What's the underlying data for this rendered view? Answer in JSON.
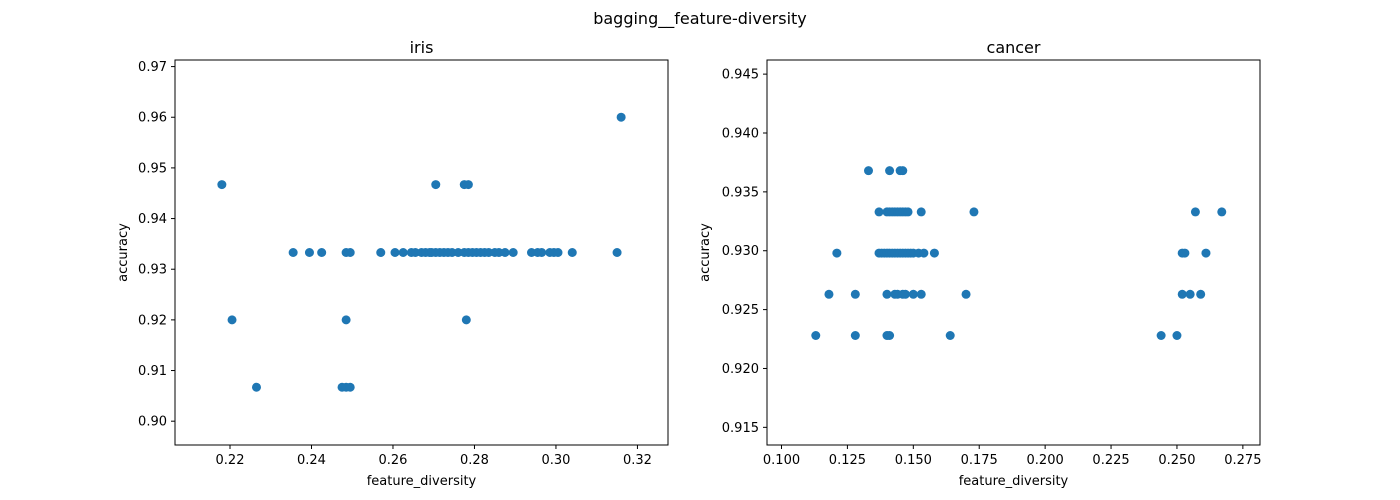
{
  "figure": {
    "suptitle": "bagging__feature-diversity",
    "point_color": "#1f77b4"
  },
  "chart_data": [
    {
      "type": "scatter",
      "title": "iris",
      "xlabel": "feature_diversity",
      "ylabel": "accuracy",
      "xlim": [
        0.2065,
        0.3275
      ],
      "ylim": [
        0.8953,
        0.9713
      ],
      "xticks": [
        0.22,
        0.24,
        0.26,
        0.28,
        0.3,
        0.32
      ],
      "xtick_labels": [
        "0.22",
        "0.24",
        "0.26",
        "0.28",
        "0.30",
        "0.32"
      ],
      "yticks": [
        0.9,
        0.91,
        0.92,
        0.93,
        0.94,
        0.95,
        0.96,
        0.97
      ],
      "ytick_labels": [
        "0.90",
        "0.91",
        "0.92",
        "0.93",
        "0.94",
        "0.95",
        "0.96",
        "0.97"
      ],
      "grid": false,
      "points": [
        {
          "x": 0.218,
          "y": 0.9467
        },
        {
          "x": 0.2705,
          "y": 0.9467
        },
        {
          "x": 0.2775,
          "y": 0.9467
        },
        {
          "x": 0.2785,
          "y": 0.9467
        },
        {
          "x": 0.316,
          "y": 0.96
        },
        {
          "x": 0.2205,
          "y": 0.92
        },
        {
          "x": 0.2485,
          "y": 0.92
        },
        {
          "x": 0.278,
          "y": 0.92
        },
        {
          "x": 0.2265,
          "y": 0.9067
        },
        {
          "x": 0.2475,
          "y": 0.9067
        },
        {
          "x": 0.2485,
          "y": 0.9067
        },
        {
          "x": 0.2495,
          "y": 0.9067
        },
        {
          "x": 0.2355,
          "y": 0.9333
        },
        {
          "x": 0.2395,
          "y": 0.9333
        },
        {
          "x": 0.2425,
          "y": 0.9333
        },
        {
          "x": 0.2485,
          "y": 0.9333
        },
        {
          "x": 0.2495,
          "y": 0.9333
        },
        {
          "x": 0.257,
          "y": 0.9333
        },
        {
          "x": 0.2605,
          "y": 0.9333
        },
        {
          "x": 0.2625,
          "y": 0.9333
        },
        {
          "x": 0.2645,
          "y": 0.9333
        },
        {
          "x": 0.2655,
          "y": 0.9333
        },
        {
          "x": 0.267,
          "y": 0.9333
        },
        {
          "x": 0.268,
          "y": 0.9333
        },
        {
          "x": 0.269,
          "y": 0.9333
        },
        {
          "x": 0.2695,
          "y": 0.9333
        },
        {
          "x": 0.2705,
          "y": 0.9333
        },
        {
          "x": 0.2715,
          "y": 0.9333
        },
        {
          "x": 0.2725,
          "y": 0.9333
        },
        {
          "x": 0.2735,
          "y": 0.9333
        },
        {
          "x": 0.2745,
          "y": 0.9333
        },
        {
          "x": 0.276,
          "y": 0.9333
        },
        {
          "x": 0.2775,
          "y": 0.9333
        },
        {
          "x": 0.2785,
          "y": 0.9333
        },
        {
          "x": 0.2795,
          "y": 0.9333
        },
        {
          "x": 0.2805,
          "y": 0.9333
        },
        {
          "x": 0.2815,
          "y": 0.9333
        },
        {
          "x": 0.2825,
          "y": 0.9333
        },
        {
          "x": 0.2835,
          "y": 0.9333
        },
        {
          "x": 0.285,
          "y": 0.9333
        },
        {
          "x": 0.286,
          "y": 0.9333
        },
        {
          "x": 0.2875,
          "y": 0.9333
        },
        {
          "x": 0.2895,
          "y": 0.9333
        },
        {
          "x": 0.294,
          "y": 0.9333
        },
        {
          "x": 0.2955,
          "y": 0.9333
        },
        {
          "x": 0.2965,
          "y": 0.9333
        },
        {
          "x": 0.2985,
          "y": 0.9333
        },
        {
          "x": 0.2995,
          "y": 0.9333
        },
        {
          "x": 0.3005,
          "y": 0.9333
        },
        {
          "x": 0.304,
          "y": 0.9333
        },
        {
          "x": 0.315,
          "y": 0.9333
        }
      ]
    },
    {
      "type": "scatter",
      "title": "cancer",
      "xlabel": "feature_diversity",
      "ylabel": "accuracy",
      "xlim": [
        0.0945,
        0.2815
      ],
      "ylim": [
        0.9135,
        0.9462
      ],
      "xticks": [
        0.1,
        0.125,
        0.15,
        0.175,
        0.2,
        0.225,
        0.25,
        0.275
      ],
      "xtick_labels": [
        "0.100",
        "0.125",
        "0.150",
        "0.175",
        "0.200",
        "0.225",
        "0.250",
        "0.275"
      ],
      "yticks": [
        0.915,
        0.92,
        0.925,
        0.93,
        0.935,
        0.94,
        0.945
      ],
      "ytick_labels": [
        "0.915",
        "0.920",
        "0.925",
        "0.930",
        "0.935",
        "0.940",
        "0.945"
      ],
      "grid": false,
      "points": [
        {
          "x": 0.133,
          "y": 0.9368
        },
        {
          "x": 0.141,
          "y": 0.9368
        },
        {
          "x": 0.145,
          "y": 0.9368
        },
        {
          "x": 0.146,
          "y": 0.9368
        },
        {
          "x": 0.137,
          "y": 0.9333
        },
        {
          "x": 0.14,
          "y": 0.9333
        },
        {
          "x": 0.141,
          "y": 0.9333
        },
        {
          "x": 0.142,
          "y": 0.9333
        },
        {
          "x": 0.143,
          "y": 0.9333
        },
        {
          "x": 0.144,
          "y": 0.9333
        },
        {
          "x": 0.145,
          "y": 0.9333
        },
        {
          "x": 0.146,
          "y": 0.9333
        },
        {
          "x": 0.147,
          "y": 0.9333
        },
        {
          "x": 0.148,
          "y": 0.9333
        },
        {
          "x": 0.153,
          "y": 0.9333
        },
        {
          "x": 0.173,
          "y": 0.9333
        },
        {
          "x": 0.257,
          "y": 0.9333
        },
        {
          "x": 0.267,
          "y": 0.9333
        },
        {
          "x": 0.121,
          "y": 0.9298
        },
        {
          "x": 0.137,
          "y": 0.9298
        },
        {
          "x": 0.138,
          "y": 0.9298
        },
        {
          "x": 0.139,
          "y": 0.9298
        },
        {
          "x": 0.14,
          "y": 0.9298
        },
        {
          "x": 0.141,
          "y": 0.9298
        },
        {
          "x": 0.142,
          "y": 0.9298
        },
        {
          "x": 0.143,
          "y": 0.9298
        },
        {
          "x": 0.144,
          "y": 0.9298
        },
        {
          "x": 0.145,
          "y": 0.9298
        },
        {
          "x": 0.146,
          "y": 0.9298
        },
        {
          "x": 0.147,
          "y": 0.9298
        },
        {
          "x": 0.148,
          "y": 0.9298
        },
        {
          "x": 0.149,
          "y": 0.9298
        },
        {
          "x": 0.15,
          "y": 0.9298
        },
        {
          "x": 0.152,
          "y": 0.9298
        },
        {
          "x": 0.154,
          "y": 0.9298
        },
        {
          "x": 0.158,
          "y": 0.9298
        },
        {
          "x": 0.252,
          "y": 0.9298
        },
        {
          "x": 0.253,
          "y": 0.9298
        },
        {
          "x": 0.261,
          "y": 0.9298
        },
        {
          "x": 0.118,
          "y": 0.9263
        },
        {
          "x": 0.128,
          "y": 0.9263
        },
        {
          "x": 0.14,
          "y": 0.9263
        },
        {
          "x": 0.143,
          "y": 0.9263
        },
        {
          "x": 0.144,
          "y": 0.9263
        },
        {
          "x": 0.146,
          "y": 0.9263
        },
        {
          "x": 0.147,
          "y": 0.9263
        },
        {
          "x": 0.15,
          "y": 0.9263
        },
        {
          "x": 0.153,
          "y": 0.9263
        },
        {
          "x": 0.17,
          "y": 0.9263
        },
        {
          "x": 0.252,
          "y": 0.9263
        },
        {
          "x": 0.255,
          "y": 0.9263
        },
        {
          "x": 0.259,
          "y": 0.9263
        },
        {
          "x": 0.113,
          "y": 0.9228
        },
        {
          "x": 0.128,
          "y": 0.9228
        },
        {
          "x": 0.14,
          "y": 0.9228
        },
        {
          "x": 0.141,
          "y": 0.9228
        },
        {
          "x": 0.164,
          "y": 0.9228
        },
        {
          "x": 0.244,
          "y": 0.9228
        },
        {
          "x": 0.25,
          "y": 0.9228
        }
      ]
    }
  ]
}
